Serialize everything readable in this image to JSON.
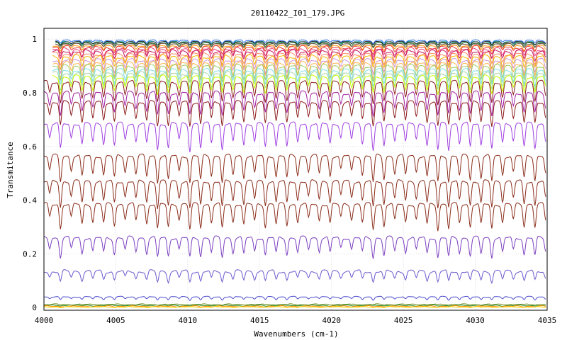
{
  "chart_data": {
    "type": "line",
    "title": "20110422_I01_179.JPG",
    "xlabel": "Wavenumbers (cm-1)",
    "ylabel": "Transmitance",
    "xlim": [
      4000,
      4035
    ],
    "ylim": [
      -0.01,
      1.04
    ],
    "x_ticks": [
      4000,
      4005,
      4010,
      4015,
      4020,
      4025,
      4030,
      4035
    ],
    "y_ticks": [
      0,
      0.2,
      0.4,
      0.6,
      0.8,
      1
    ],
    "x_tick_labels": [
      "4000",
      "4005",
      "4010",
      "4015",
      "4020",
      "4025",
      "4030",
      "4035"
    ],
    "y_tick_labels": [
      "0",
      "0.2",
      "0.4",
      "0.6",
      "0.8",
      "1"
    ],
    "grid": true,
    "legend": "none",
    "line_spacing_cm1": 0.75,
    "series": [
      {
        "color": "#2b6fe8",
        "baseline": 0.995,
        "depth": 0.01,
        "start": 0.8
      },
      {
        "color": "#1aa3a3",
        "baseline": 0.99,
        "depth": 0.012,
        "start": 0.8
      },
      {
        "color": "#2e7d32",
        "baseline": 0.985,
        "depth": 0.014,
        "start": 0.8
      },
      {
        "color": "#222222",
        "baseline": 0.99,
        "depth": 0.012,
        "start": 0.8
      },
      {
        "color": "#6d4c41",
        "baseline": 0.982,
        "depth": 0.016,
        "start": 0.8
      },
      {
        "color": "#ff9800",
        "baseline": 0.975,
        "depth": 0.02,
        "start": 0.6
      },
      {
        "color": "#e53935",
        "baseline": 0.97,
        "depth": 0.022,
        "start": 0.6
      },
      {
        "color": "#ec407a",
        "baseline": 0.962,
        "depth": 0.03,
        "start": 0.6
      },
      {
        "color": "#c2185b",
        "baseline": 0.955,
        "depth": 0.034,
        "start": 0.6
      },
      {
        "color": "#ff8a65",
        "baseline": 0.945,
        "depth": 0.04,
        "start": 0.6
      },
      {
        "color": "#f4b400",
        "baseline": 0.935,
        "depth": 0.045,
        "start": 0.6
      },
      {
        "color": "#ce93d8",
        "baseline": 0.922,
        "depth": 0.05,
        "start": 0.6
      },
      {
        "color": "#ffb74d",
        "baseline": 0.91,
        "depth": 0.055,
        "start": 0.6
      },
      {
        "color": "#9ccc65",
        "baseline": 0.9,
        "depth": 0.06,
        "start": 0.6
      },
      {
        "color": "#80deea",
        "baseline": 0.885,
        "depth": 0.062,
        "start": 0.6
      },
      {
        "color": "#a5d6a7",
        "baseline": 0.872,
        "depth": 0.064,
        "start": 0.6
      },
      {
        "color": "#c6ff00",
        "baseline": 0.86,
        "depth": 0.066,
        "start": 0.6
      },
      {
        "color": "#8b1a1a",
        "baseline": 0.84,
        "depth": 0.08,
        "start": 0.0
      },
      {
        "color": "#a020a0",
        "baseline": 0.8,
        "depth": 0.085,
        "start": 0.0
      },
      {
        "color": "#8b1a1a",
        "baseline": 0.765,
        "depth": 0.09,
        "start": 0.0
      },
      {
        "color": "#a040e0",
        "baseline": 0.685,
        "depth": 0.1,
        "start": 0.0
      },
      {
        "color": "#8b2d1a",
        "baseline": 0.565,
        "depth": 0.1,
        "start": 0.0
      },
      {
        "color": "#8b2d1a",
        "baseline": 0.47,
        "depth": 0.1,
        "start": 0.0
      },
      {
        "color": "#8b2d1a",
        "baseline": 0.385,
        "depth": 0.095,
        "start": 0.0
      },
      {
        "color": "#7b3fbf",
        "baseline": 0.26,
        "depth": 0.075,
        "start": 0.0
      },
      {
        "color": "#6a5acd",
        "baseline": 0.135,
        "depth": 0.04,
        "start": 0.0
      },
      {
        "color": "#4b4bcc",
        "baseline": 0.04,
        "depth": 0.012,
        "start": 0.0
      },
      {
        "color": "#6b8e23",
        "baseline": 0.012,
        "depth": 0.002,
        "start": 0.0
      },
      {
        "color": "#228b22",
        "baseline": 0.008,
        "depth": 0.002,
        "start": 0.0
      },
      {
        "color": "#ff8c00",
        "baseline": 0.005,
        "depth": 0.002,
        "start": 0.0
      },
      {
        "color": "#ffd700",
        "baseline": 0.002,
        "depth": 0.001,
        "start": 0.0
      }
    ]
  }
}
